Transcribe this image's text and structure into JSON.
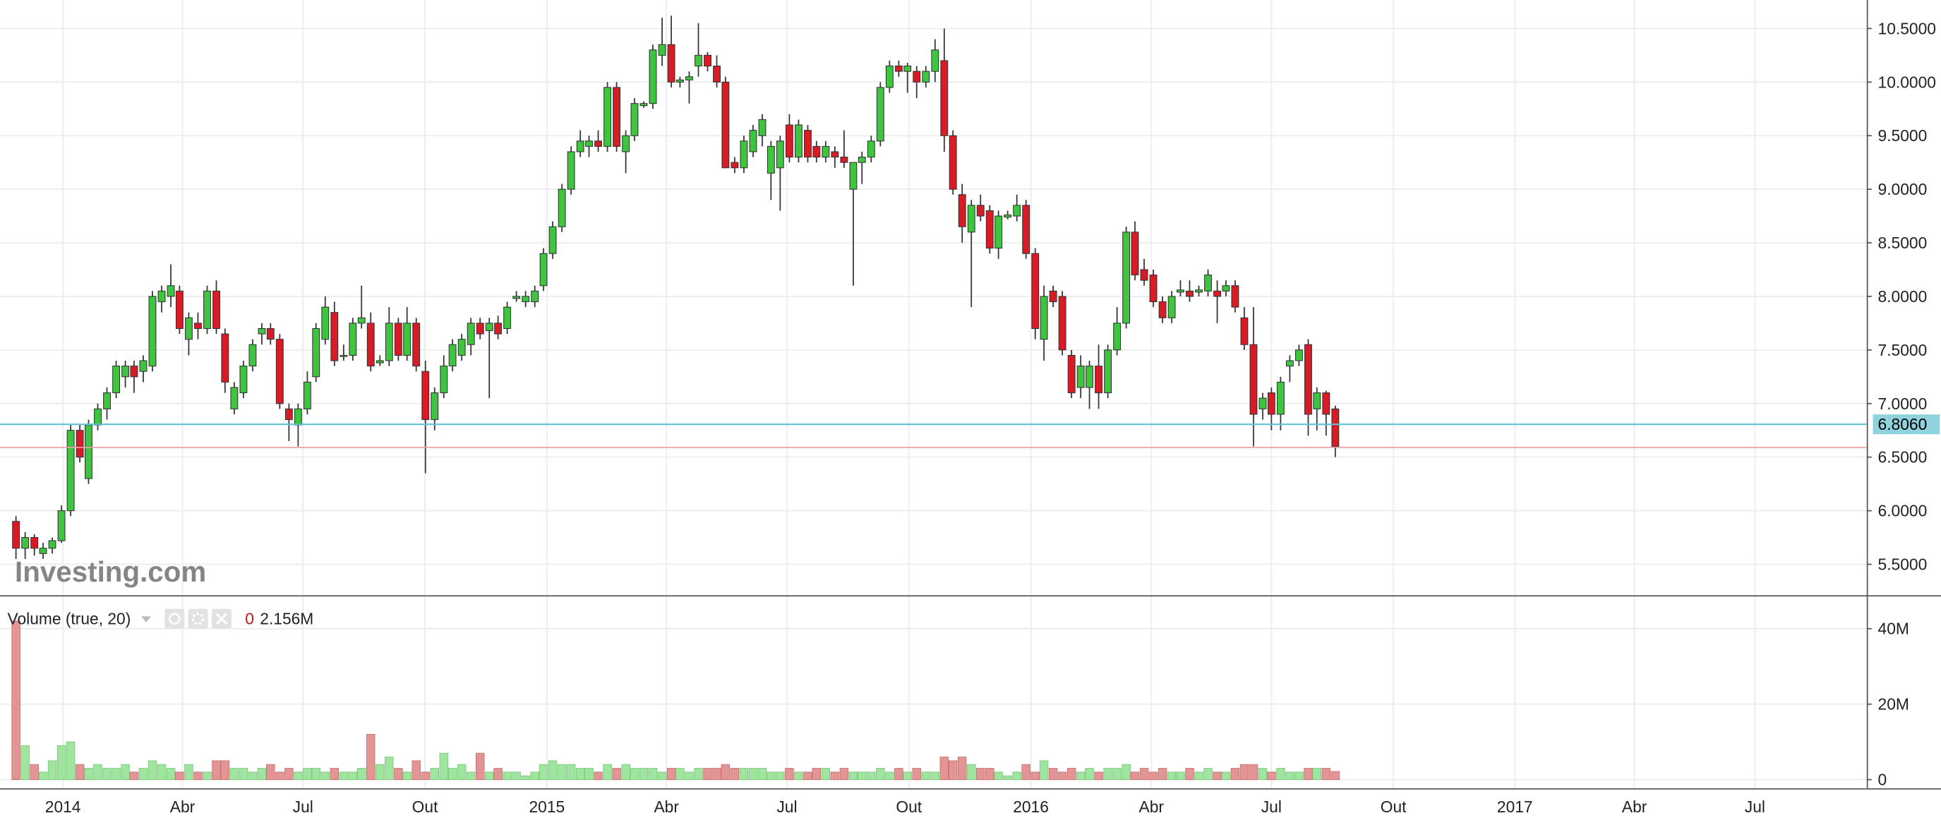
{
  "chart_data": [
    {
      "type": "candlestick",
      "watermark": "Investing.com",
      "up_color": "#3ec43e",
      "down_color": "#d81b24",
      "grid": true,
      "xlim": [
        2013.87,
        2017.727
      ],
      "xticks": [
        2014,
        {
          "value": 2014.247,
          "label": "Abr"
        },
        {
          "value": 2014.496,
          "label": "Jul"
        },
        {
          "value": 2014.748,
          "label": "Out"
        },
        2015,
        {
          "value": 2015.247,
          "label": "Abr"
        },
        {
          "value": 2015.496,
          "label": "Jul"
        },
        {
          "value": 2015.748,
          "label": "Out"
        },
        2016,
        {
          "value": 2016.249,
          "label": "Abr"
        },
        {
          "value": 2016.497,
          "label": "Jul"
        },
        {
          "value": 2016.749,
          "label": "Out"
        },
        2017,
        {
          "value": 2017.247,
          "label": "Abr"
        },
        {
          "value": 2017.496,
          "label": "Jul"
        }
      ],
      "ylim": [
        5.211,
        10.766
      ],
      "yticks": [
        {
          "value": 5.5,
          "label": "5.5000"
        },
        {
          "value": 6,
          "label": "6.0000"
        },
        {
          "value": 6.5,
          "label": "6.5000"
        },
        {
          "value": 7,
          "label": "7.0000"
        },
        {
          "value": 7.5,
          "label": "7.5000"
        },
        {
          "value": 8,
          "label": "8.0000"
        },
        {
          "value": 8.5,
          "label": "8.5000"
        },
        {
          "value": 9,
          "label": "9.0000"
        },
        {
          "value": 9.5,
          "label": "9.5000"
        },
        {
          "value": 10,
          "label": "10.0000"
        },
        {
          "value": 10.5,
          "label": "10.5000"
        }
      ],
      "last_price": {
        "value": 6.806,
        "label": "6.8060"
      },
      "reference_line": 6.59,
      "x": [
        2013.903,
        2013.922,
        2013.941,
        2013.959,
        2013.978,
        2013.997,
        2014.016,
        2014.035,
        2014.053,
        2014.072,
        2014.091,
        2014.11,
        2014.129,
        2014.147,
        2014.166,
        2014.185,
        2014.204,
        2014.223,
        2014.241,
        2014.26,
        2014.279,
        2014.298,
        2014.317,
        2014.335,
        2014.354,
        2014.373,
        2014.392,
        2014.411,
        2014.429,
        2014.448,
        2014.467,
        2014.486,
        2014.505,
        2014.523,
        2014.542,
        2014.561,
        2014.58,
        2014.599,
        2014.617,
        2014.636,
        2014.655,
        2014.674,
        2014.693,
        2014.711,
        2014.73,
        2014.749,
        2014.768,
        2014.787,
        2014.805,
        2014.824,
        2014.843,
        2014.862,
        2014.881,
        2014.899,
        2014.918,
        2014.937,
        2014.956,
        2014.975,
        2014.993,
        2015.012,
        2015.031,
        2015.05,
        2015.069,
        2015.087,
        2015.106,
        2015.125,
        2015.144,
        2015.163,
        2015.181,
        2015.2,
        2015.219,
        2015.238,
        2015.257,
        2015.275,
        2015.294,
        2015.313,
        2015.332,
        2015.351,
        2015.369,
        2015.388,
        2015.407,
        2015.426,
        2015.445,
        2015.463,
        2015.482,
        2015.501,
        2015.52,
        2015.539,
        2015.557,
        2015.576,
        2015.595,
        2015.614,
        2015.633,
        2015.651,
        2015.67,
        2015.689,
        2015.708,
        2015.727,
        2015.745,
        2015.764,
        2015.783,
        2015.802,
        2015.821,
        2015.839,
        2015.858,
        2015.877,
        2015.896,
        2015.915,
        2015.933,
        2015.952,
        2015.971,
        2015.99,
        2016.009,
        2016.027,
        2016.046,
        2016.065,
        2016.084,
        2016.103,
        2016.121,
        2016.14,
        2016.159,
        2016.178,
        2016.197,
        2016.215,
        2016.234,
        2016.253,
        2016.272,
        2016.291,
        2016.309,
        2016.328,
        2016.347,
        2016.366,
        2016.385,
        2016.403,
        2016.422,
        2016.441,
        2016.46,
        2016.479,
        2016.497,
        2016.516,
        2016.535,
        2016.554,
        2016.573,
        2016.591,
        2016.61,
        2016.629
      ],
      "open": [
        5.9,
        5.65,
        5.75,
        5.6,
        5.65,
        5.72,
        6.0,
        6.75,
        6.3,
        6.8,
        6.95,
        7.1,
        7.25,
        7.35,
        7.3,
        7.35,
        7.95,
        8.0,
        8.05,
        7.6,
        7.75,
        7.7,
        8.05,
        7.65,
        6.95,
        7.1,
        7.35,
        7.65,
        7.7,
        7.6,
        6.95,
        6.8,
        6.95,
        7.25,
        7.6,
        7.85,
        7.45,
        7.45,
        7.75,
        7.75,
        7.38,
        7.4,
        7.75,
        7.45,
        7.75,
        7.3,
        6.85,
        7.1,
        7.35,
        7.45,
        7.55,
        7.75,
        7.68,
        7.75,
        7.7,
        7.98,
        7.95,
        7.95,
        8.1,
        8.4,
        8.65,
        9.0,
        9.35,
        9.4,
        9.45,
        9.4,
        9.95,
        9.35,
        9.5,
        9.78,
        9.8,
        10.25,
        10.35,
        10.0,
        10.02,
        10.15,
        10.25,
        10.15,
        10.0,
        9.25,
        9.2,
        9.35,
        9.5,
        9.15,
        9.2,
        9.6,
        9.3,
        9.55,
        9.4,
        9.3,
        9.35,
        9.3,
        9.0,
        9.25,
        9.3,
        9.45,
        9.95,
        10.15,
        10.1,
        10.1,
        10.0,
        10.1,
        10.2,
        9.5,
        8.95,
        8.6,
        8.85,
        8.8,
        8.45,
        8.74,
        8.75,
        8.85,
        8.4,
        7.6,
        8.05,
        8.0,
        7.45,
        7.15,
        7.15,
        7.35,
        7.1,
        7.5,
        7.75,
        8.6,
        8.25,
        8.2,
        7.95,
        7.8,
        8.04,
        8.05,
        8.04,
        8.05,
        8.05,
        8.05,
        8.1,
        7.8,
        7.55,
        6.95,
        7.1,
        6.9,
        7.35,
        7.4,
        7.55,
        6.95,
        7.1,
        6.95
      ],
      "high": [
        5.95,
        5.8,
        5.78,
        5.7,
        5.75,
        6.05,
        6.8,
        6.8,
        6.85,
        7.0,
        7.15,
        7.4,
        7.4,
        7.4,
        7.45,
        8.05,
        8.1,
        8.3,
        8.1,
        7.85,
        7.85,
        8.1,
        8.15,
        7.7,
        7.2,
        7.4,
        7.6,
        7.75,
        7.75,
        7.65,
        7.0,
        7.0,
        7.3,
        7.75,
        8.0,
        7.95,
        7.55,
        7.8,
        8.1,
        7.85,
        7.45,
        7.9,
        7.8,
        7.9,
        7.8,
        7.4,
        7.15,
        7.45,
        7.6,
        7.65,
        7.8,
        7.8,
        7.8,
        7.82,
        7.95,
        8.05,
        8.05,
        8.1,
        8.45,
        8.7,
        9.05,
        9.4,
        9.55,
        9.5,
        9.55,
        10.0,
        10.0,
        9.55,
        9.85,
        9.82,
        10.35,
        10.6,
        10.62,
        10.05,
        10.1,
        10.55,
        10.28,
        10.25,
        10.05,
        9.3,
        9.5,
        9.6,
        9.7,
        9.45,
        9.5,
        9.7,
        9.65,
        9.6,
        9.45,
        9.45,
        9.4,
        9.55,
        9.25,
        9.35,
        9.5,
        10.0,
        10.2,
        10.2,
        10.18,
        10.15,
        10.15,
        10.4,
        10.5,
        9.55,
        9.05,
        8.9,
        8.95,
        8.85,
        8.8,
        8.8,
        8.95,
        8.9,
        8.45,
        8.1,
        8.1,
        8.05,
        7.5,
        7.45,
        7.4,
        7.55,
        7.55,
        7.9,
        8.65,
        8.7,
        8.35,
        8.25,
        8.0,
        8.05,
        8.15,
        8.15,
        8.1,
        8.25,
        8.15,
        8.15,
        8.15,
        7.9,
        7.9,
        7.1,
        7.15,
        7.25,
        7.45,
        7.55,
        7.6,
        7.15,
        7.12,
        6.98
      ],
      "low": [
        5.55,
        5.55,
        5.58,
        5.55,
        5.6,
        5.7,
        5.95,
        6.45,
        6.25,
        6.75,
        6.85,
        7.05,
        7.15,
        7.1,
        7.2,
        7.3,
        7.85,
        7.9,
        7.65,
        7.45,
        7.6,
        7.65,
        7.65,
        7.1,
        6.9,
        7.05,
        7.3,
        7.55,
        7.55,
        6.95,
        6.65,
        6.6,
        6.9,
        7.2,
        7.55,
        7.35,
        7.4,
        7.4,
        7.7,
        7.3,
        7.35,
        7.35,
        7.4,
        7.4,
        7.3,
        6.35,
        6.75,
        7.05,
        7.3,
        7.4,
        7.45,
        7.6,
        7.05,
        7.6,
        7.65,
        7.95,
        7.9,
        7.9,
        8.05,
        8.35,
        8.6,
        8.95,
        9.3,
        9.3,
        9.35,
        9.35,
        9.35,
        9.15,
        9.45,
        9.76,
        9.75,
        10.15,
        9.95,
        9.95,
        9.8,
        10.05,
        10.1,
        9.95,
        9.2,
        9.15,
        9.15,
        9.3,
        9.4,
        8.9,
        8.8,
        9.25,
        9.25,
        9.25,
        9.25,
        9.25,
        9.2,
        9.2,
        8.1,
        9.05,
        9.25,
        9.4,
        9.9,
        10.05,
        9.9,
        9.85,
        9.95,
        10.0,
        9.35,
        8.95,
        8.5,
        7.9,
        8.7,
        8.4,
        8.35,
        8.72,
        8.7,
        8.35,
        7.6,
        7.4,
        7.9,
        7.45,
        7.05,
        7.05,
        6.95,
        6.95,
        7.05,
        7.45,
        7.7,
        8.15,
        8.1,
        7.9,
        7.75,
        7.75,
        8.0,
        7.95,
        8.0,
        8.0,
        7.75,
        8.0,
        7.85,
        7.5,
        6.6,
        6.85,
        6.75,
        6.75,
        7.2,
        7.35,
        6.7,
        6.75,
        6.7,
        6.5
      ],
      "close": [
        5.65,
        5.75,
        5.65,
        5.65,
        5.72,
        6.0,
        6.75,
        6.5,
        6.8,
        6.95,
        7.1,
        7.35,
        7.35,
        7.25,
        7.4,
        8.0,
        8.05,
        8.1,
        7.7,
        7.8,
        7.7,
        8.05,
        7.7,
        7.2,
        7.15,
        7.35,
        7.55,
        7.7,
        7.6,
        7.0,
        6.85,
        6.95,
        7.2,
        7.7,
        7.9,
        7.4,
        7.45,
        7.75,
        7.8,
        7.35,
        7.4,
        7.75,
        7.45,
        7.75,
        7.35,
        6.85,
        7.1,
        7.35,
        7.55,
        7.6,
        7.75,
        7.65,
        7.75,
        7.65,
        7.9,
        8.0,
        8.0,
        8.05,
        8.4,
        8.65,
        9.0,
        9.35,
        9.45,
        9.45,
        9.4,
        9.95,
        9.4,
        9.5,
        9.8,
        9.8,
        10.3,
        10.35,
        10.0,
        10.02,
        10.05,
        10.25,
        10.15,
        10.0,
        9.2,
        9.2,
        9.45,
        9.55,
        9.65,
        9.4,
        9.45,
        9.3,
        9.6,
        9.3,
        9.3,
        9.4,
        9.3,
        9.25,
        9.25,
        9.3,
        9.45,
        9.95,
        10.15,
        10.1,
        10.15,
        10.0,
        10.1,
        10.3,
        9.5,
        9.0,
        8.65,
        8.85,
        8.75,
        8.45,
        8.75,
        8.76,
        8.85,
        8.4,
        7.7,
        8.0,
        7.95,
        7.5,
        7.1,
        7.35,
        7.35,
        7.1,
        7.5,
        7.75,
        8.6,
        8.2,
        8.15,
        7.95,
        7.8,
        8.0,
        8.06,
        8.0,
        8.06,
        8.2,
        8.0,
        8.1,
        7.9,
        7.55,
        6.9,
        7.05,
        6.9,
        7.2,
        7.4,
        7.5,
        6.9,
        7.1,
        6.9,
        6.6
      ]
    },
    {
      "type": "bar",
      "title": "Volume (true, 20)",
      "change": "0",
      "last_value": {
        "value": 2.156,
        "label": "2.156M"
      },
      "up_color": "#9fe49f",
      "down_color": "#e39494",
      "grid": true,
      "ylim": [
        -2.3,
        48.2
      ],
      "yticks": [
        0,
        {
          "value": 20,
          "label": "20M"
        },
        {
          "value": 40,
          "label": "40M"
        }
      ],
      "values": [
        42,
        9,
        4,
        2,
        5,
        9,
        10,
        4,
        3,
        4,
        3,
        3,
        4,
        2,
        3,
        5,
        4,
        3,
        2,
        4,
        2,
        2,
        5,
        5,
        3,
        3,
        2,
        3,
        4,
        2,
        3,
        2,
        3,
        3,
        2,
        3,
        2,
        2,
        3,
        12,
        4,
        6,
        3,
        2,
        5,
        2,
        3,
        7,
        3,
        4,
        2,
        7,
        2,
        3,
        2,
        2,
        1,
        2,
        4,
        5,
        4,
        4,
        3,
        3,
        2,
        4,
        3,
        4,
        3,
        3,
        3,
        2,
        3,
        3,
        2,
        3,
        3,
        3,
        4,
        3,
        3,
        3,
        3,
        2,
        2,
        3,
        2,
        2,
        3,
        3,
        2,
        3,
        2,
        2,
        2,
        3,
        2,
        3,
        2,
        3,
        2,
        2,
        6,
        5,
        6,
        4,
        3,
        3,
        2,
        1,
        2,
        4,
        2,
        5,
        3,
        2,
        3,
        2,
        3,
        2,
        3,
        3,
        4,
        2,
        3,
        2,
        3,
        2,
        2,
        3,
        2,
        3,
        2,
        2,
        3,
        4,
        4,
        3,
        2,
        3,
        2,
        2,
        3,
        3,
        3,
        2.156
      ]
    }
  ]
}
